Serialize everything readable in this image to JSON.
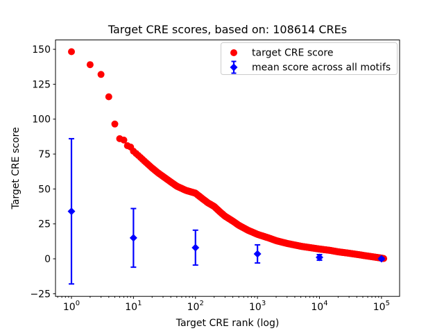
{
  "figure": {
    "background": "#ffffff",
    "text_color": "#000000"
  },
  "chart_data": {
    "type": "scatter",
    "title": "Target CRE scores, based on: 108614 CREs",
    "xlabel": "Target CRE rank (log)",
    "ylabel": "Target CRE score",
    "xscale": "log",
    "xlim": [
      0.553,
      196000
    ],
    "ylim": [
      -26.9,
      156.7
    ],
    "x_tick_exponents": [
      0,
      1,
      2,
      3,
      4,
      5
    ],
    "y_ticks": [
      150,
      125,
      100,
      75,
      50,
      25,
      0,
      -25
    ],
    "grid": false,
    "n_total_points": 108614,
    "legend_position": "upper right",
    "series": [
      {
        "name": "target CRE score",
        "type": "scatter-band",
        "marker": "circle",
        "color": "#ff0000",
        "marker_radius": 5,
        "max_rank": 108614,
        "anchor_points": [
          [
            1,
            148.3
          ],
          [
            2,
            139
          ],
          [
            3,
            132
          ],
          [
            4,
            116
          ],
          [
            5,
            96.5
          ],
          [
            6,
            86
          ],
          [
            7,
            85
          ],
          [
            8,
            81
          ],
          [
            9,
            80
          ],
          [
            10,
            77
          ],
          [
            12,
            74
          ],
          [
            15,
            70
          ],
          [
            20,
            65
          ],
          [
            25,
            61.5
          ],
          [
            30,
            59
          ],
          [
            40,
            55
          ],
          [
            50,
            52
          ],
          [
            70,
            49
          ],
          [
            100,
            47
          ],
          [
            130,
            43
          ],
          [
            160,
            40
          ],
          [
            200,
            37.5
          ],
          [
            250,
            33.5
          ],
          [
            300,
            30.5
          ],
          [
            400,
            27
          ],
          [
            500,
            24
          ],
          [
            700,
            20.5
          ],
          [
            1000,
            17.5
          ],
          [
            1500,
            15
          ],
          [
            2000,
            13
          ],
          [
            3000,
            11
          ],
          [
            5000,
            9
          ],
          [
            7000,
            8
          ],
          [
            10000,
            7
          ],
          [
            15000,
            6
          ],
          [
            20000,
            5
          ],
          [
            30000,
            4
          ],
          [
            50000,
            2.5
          ],
          [
            70000,
            1.5
          ],
          [
            100000,
            0.5
          ],
          [
            108614,
            0.2
          ]
        ]
      },
      {
        "name": "mean score across all motifs",
        "type": "errorbar",
        "marker": "diamond",
        "color": "#0000ff",
        "marker_radius": 5.5,
        "line_width": 2.2,
        "cap_half_width": 4,
        "points": [
          {
            "x": 1,
            "y": 34,
            "err": 52
          },
          {
            "x": 10,
            "y": 15,
            "err": 21
          },
          {
            "x": 100,
            "y": 8,
            "err": 12.5
          },
          {
            "x": 1000,
            "y": 3.5,
            "err": 6.5
          },
          {
            "x": 10000,
            "y": 1,
            "err": 2
          },
          {
            "x": 100000,
            "y": 0,
            "err": 0.8
          }
        ]
      }
    ]
  }
}
